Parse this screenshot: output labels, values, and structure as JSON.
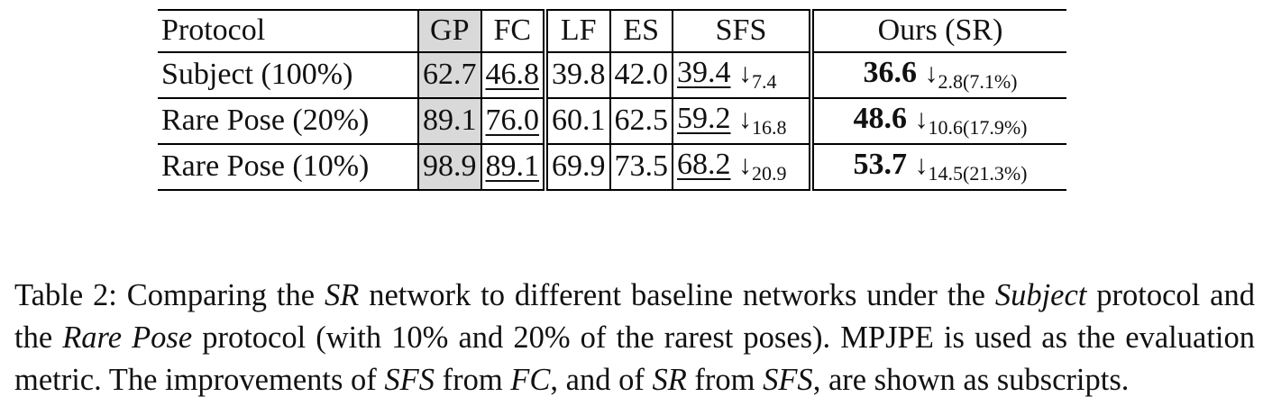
{
  "table": {
    "headers": {
      "protocol": "Protocol",
      "gp": "GP",
      "fc": "FC",
      "lf": "LF",
      "es": "ES",
      "sfs": "SFS",
      "ours": "Ours (SR)"
    },
    "rows": [
      {
        "protocol": "Subject (100%)",
        "gp": "62.7",
        "fc": "46.8",
        "lf": "39.8",
        "es": "42.0",
        "sfs": "39.4",
        "sfs_arrow": "↓",
        "sfs_delta": "7.4",
        "ours": "36.6",
        "ours_arrow": "↓",
        "ours_delta": "2.8(7.1%)"
      },
      {
        "protocol": "Rare Pose (20%)",
        "gp": "89.1",
        "fc": "76.0",
        "lf": "60.1",
        "es": "62.5",
        "sfs": "59.2",
        "sfs_arrow": "↓",
        "sfs_delta": "16.8",
        "ours": "48.6",
        "ours_arrow": "↓",
        "ours_delta": "10.6(17.9%)"
      },
      {
        "protocol": "Rare Pose (10%)",
        "gp": "98.9",
        "fc": "89.1",
        "lf": "69.9",
        "es": "73.5",
        "sfs": "68.2",
        "sfs_arrow": "↓",
        "sfs_delta": "20.9",
        "ours": "53.7",
        "ours_arrow": "↓",
        "ours_delta": "14.5(21.3%)"
      }
    ]
  },
  "caption": {
    "lead": "Table 2: Comparing the ",
    "sr1": "SR",
    "t1": " network to different baseline networks under the ",
    "subject": "Subject",
    "t2": " protocol and the ",
    "rare_pose": "Rare Pose",
    "t3": " protocol (with 10% and 20% of the rarest poses). MPJPE is used as the evaluation metric. The improvements of ",
    "sfs1": "SFS",
    "t4": " from ",
    "fc": "FC",
    "t5": ", and of ",
    "sr2": "SR",
    "t6": " from ",
    "sfs2": "SFS",
    "t7": ", are shown as subscripts."
  },
  "colors": {
    "gp_shade": "#d9d9d9",
    "rule": "#000000"
  }
}
